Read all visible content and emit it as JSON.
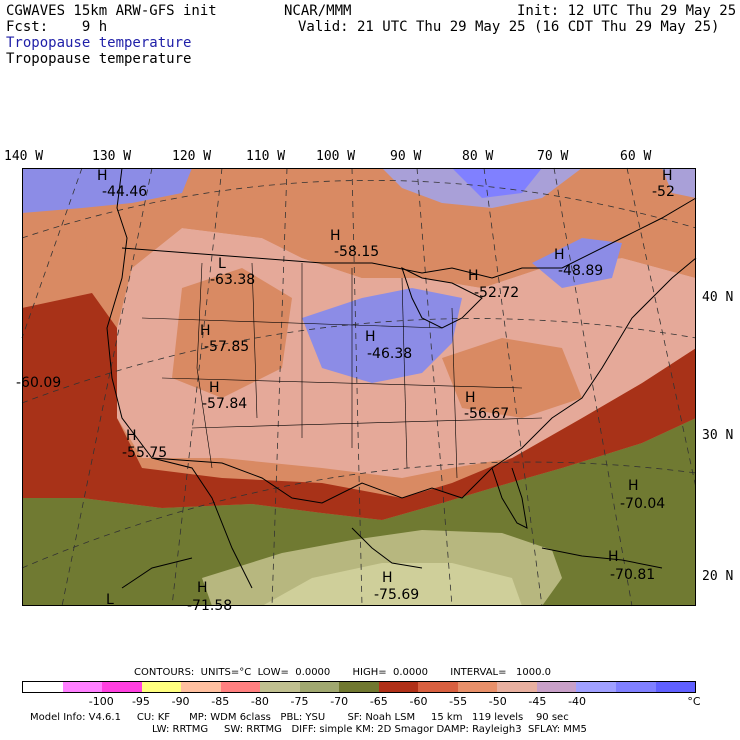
{
  "header": {
    "model_line": "CGWAVES 15km ARW-GFS init",
    "org": "NCAR/MMM",
    "init": "Init: 12 UTC Thu 29 May 25",
    "fcst": "Fcst:    9 h",
    "valid": "Valid: 21 UTC Thu 29 May 25 (16 CDT Thu 29 May 25)",
    "field_blue": "Tropopause temperature",
    "field_black": "Tropopause temperature"
  },
  "axes": {
    "lon_labels": [
      "140 W",
      "130 W",
      "120 W",
      "110 W",
      "100 W",
      "90 W",
      "80 W",
      "70 W",
      "60 W"
    ],
    "lat_labels": [
      "40 N",
      "30 N",
      "20 N"
    ]
  },
  "map_labels": [
    {
      "letter": "H",
      "value": "-44.46"
    },
    {
      "letter": "L",
      "value": "-63.38"
    },
    {
      "letter": "H",
      "value": "-58.15"
    },
    {
      "letter": "H",
      "value": "-48.89"
    },
    {
      "letter": "H",
      "value": "-52"
    },
    {
      "letter": "H",
      "value": "-52.72"
    },
    {
      "letter": "H",
      "value": "-57.85"
    },
    {
      "letter": "H",
      "value": "-46.38"
    },
    {
      "letter": "",
      "value": "-60.09"
    },
    {
      "letter": "H",
      "value": "-57.84"
    },
    {
      "letter": "H",
      "value": "-56.67"
    },
    {
      "letter": "H",
      "value": "-55.75"
    },
    {
      "letter": "H",
      "value": "-70.04"
    },
    {
      "letter": "H",
      "value": "-70.81"
    },
    {
      "letter": "H",
      "value": "-75.69"
    },
    {
      "letter": "H",
      "value": "-71.58"
    },
    {
      "letter": "L",
      "value": ""
    }
  ],
  "contours": {
    "line": "CONTOURS:  UNITS=°C  LOW=  0.0000       HIGH=  0.0000       INTERVAL=   1000.0"
  },
  "colorbar": {
    "colors": [
      "#ffffff",
      "#ff80ff",
      "#ff40e0",
      "#ffff80",
      "#ffc0a0",
      "#ff8080",
      "#c0c090",
      "#a0a870",
      "#707830",
      "#b03018",
      "#d86040",
      "#e8906a",
      "#e8b0a0",
      "#c8a0c8",
      "#a0a0ff",
      "#8080ff",
      "#6060ff"
    ],
    "ticks": [
      "-100",
      "-95",
      "-90",
      "-85",
      "-80",
      "-75",
      "-70",
      "-65",
      "-60",
      "-55",
      "-50",
      "-45",
      "-40"
    ],
    "unit": "°C"
  },
  "model_info": {
    "line1": "Model Info: V4.6.1     CU: KF      MP: WDM 6class   PBL: YSU       SF: Noah LSM     15 km   119 levels    90 sec",
    "line2": "LW: RRTMG     SW: RRTMG   DIFF: simple KM: 2D Smagor DAMP: Rayleigh3  SFLAY: MM5"
  }
}
